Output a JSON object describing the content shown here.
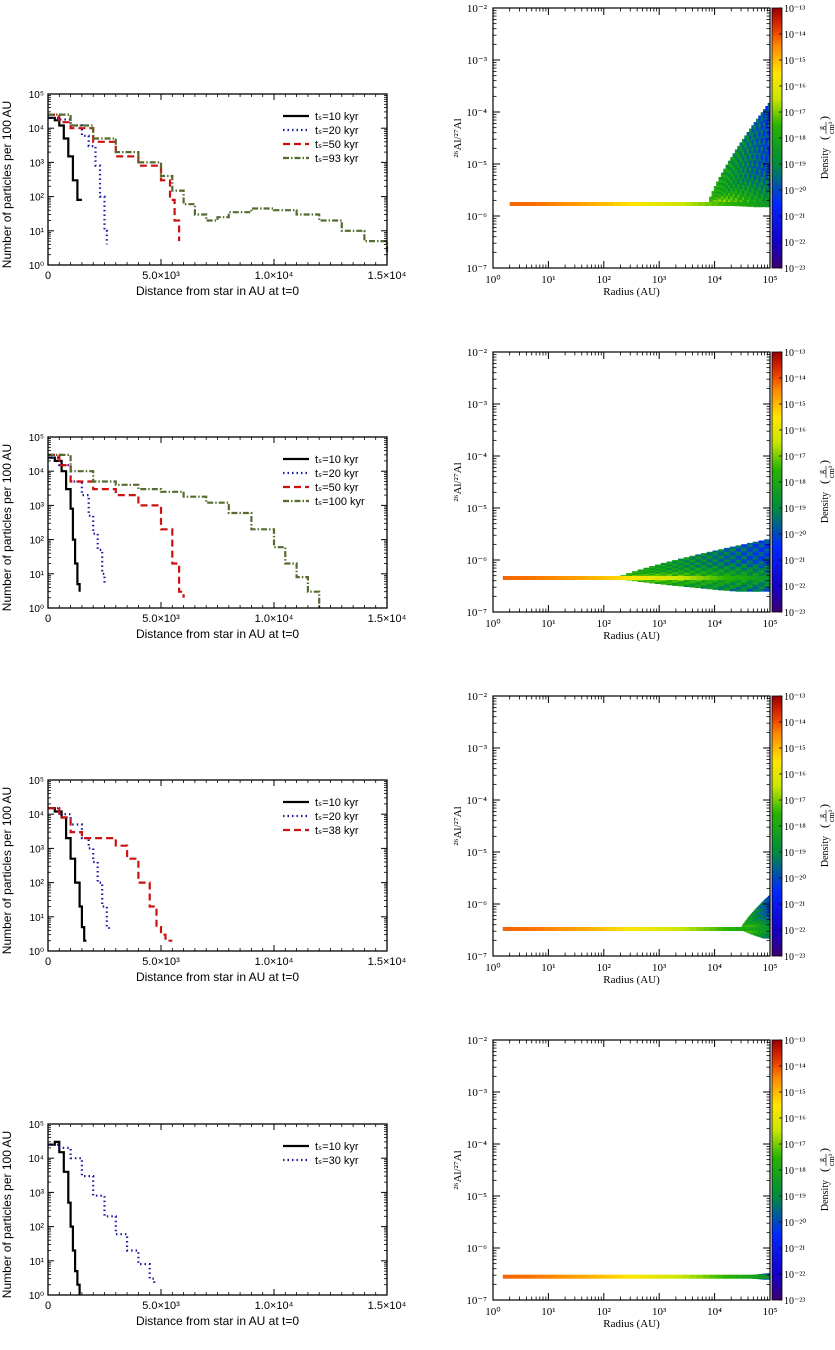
{
  "chart_data": [
    {
      "type": "line",
      "panel": "left-1",
      "xlabel": "Distance from star in AU at t=0",
      "ylabel": "Number of particles per 100 AU",
      "xlim": [
        0,
        15000
      ],
      "ylim": [
        1,
        100000
      ],
      "yscale": "log",
      "xticks": [
        "0",
        "5.0×10³",
        "1.0×10⁴",
        "1.5×10⁴"
      ],
      "yticks": [
        "10⁰",
        "10¹",
        "10²",
        "10³",
        "10⁴",
        "10⁵"
      ],
      "legend_position": "top-right",
      "series": [
        {
          "name": "tₛ=10 kyr",
          "color": "#000000",
          "dash": "solid",
          "x": [
            0,
            300,
            500,
            700,
            900,
            1100,
            1300,
            1500
          ],
          "y": [
            20000,
            17000,
            12000,
            5000,
            1500,
            300,
            80,
            80
          ]
        },
        {
          "name": "tₛ=20 kyr",
          "color": "#1a1a9e",
          "dash": "dot",
          "x": [
            0,
            500,
            1000,
            1500,
            1800,
            2100,
            2300,
            2500,
            2600
          ],
          "y": [
            20000,
            18000,
            12000,
            6000,
            3000,
            800,
            100,
            10,
            4
          ]
        },
        {
          "name": "tₛ=50 kyr",
          "color": "#cc1111",
          "dash": "dash",
          "x": [
            0,
            500,
            1000,
            2000,
            3000,
            4000,
            5000,
            5400,
            5600,
            5800
          ],
          "y": [
            25000,
            15000,
            10000,
            4000,
            1500,
            800,
            300,
            80,
            20,
            5
          ]
        },
        {
          "name": "tₛ=93 kyr",
          "color": "#556b2f",
          "dash": "dashdot",
          "x": [
            0,
            1000,
            2000,
            3000,
            4000,
            5000,
            5500,
            6000,
            6500,
            7000,
            7500,
            8000,
            9000,
            10000,
            11000,
            12000,
            13000,
            14000,
            15000
          ],
          "y": [
            25000,
            12000,
            5000,
            2000,
            1000,
            400,
            150,
            60,
            30,
            20,
            25,
            35,
            45,
            40,
            30,
            20,
            10,
            5,
            2
          ]
        }
      ]
    },
    {
      "type": "heatmap",
      "panel": "right-1",
      "xlabel": "Radius  (AU)",
      "ylabel": "²⁶Al/²⁷Al",
      "xscale": "log",
      "yscale": "log",
      "xlim": [
        1,
        100000
      ],
      "ylim": [
        1e-07,
        0.01
      ],
      "xticks": [
        "10⁰",
        "10¹",
        "10²",
        "10³",
        "10⁴",
        "10⁵"
      ],
      "yticks": [
        "10⁻⁷",
        "10⁻⁶",
        "10⁻⁵",
        "10⁻⁴",
        "10⁻³",
        "10⁻²"
      ],
      "colorbar_label": "Density",
      "colorbar_unit_num": "g",
      "colorbar_unit_den": "cm³",
      "colorbar_range": [
        1e-23,
        1e-13
      ],
      "colorbar_ticks": [
        "10⁻¹³",
        "10⁻¹⁴",
        "10⁻¹⁵",
        "10⁻¹⁶",
        "10⁻¹⁷",
        "10⁻¹⁸",
        "10⁻¹⁹",
        "10⁻²⁰",
        "10⁻²¹",
        "10⁻²²",
        "10⁻²³"
      ],
      "band": {
        "ratio": 1.7e-06,
        "r_start": 2
      },
      "cloud": {
        "r_start": 8000,
        "r_end": 100000,
        "ratio_min": 1.5e-06,
        "ratio_max": 0.00015
      }
    },
    {
      "type": "line",
      "panel": "left-2",
      "xlabel": "Distance from star in AU at t=0",
      "ylabel": "Number of particles per 100 AU",
      "xlim": [
        0,
        15000
      ],
      "ylim": [
        1,
        100000
      ],
      "yscale": "log",
      "xticks": [
        "0",
        "5.0×10³",
        "1.0×10⁴",
        "1.5×10⁴"
      ],
      "yticks": [
        "10⁰",
        "10¹",
        "10²",
        "10³",
        "10⁴",
        "10⁵"
      ],
      "legend_position": "top-right",
      "series": [
        {
          "name": "tₛ=10 kyr",
          "color": "#000000",
          "dash": "solid",
          "x": [
            0,
            300,
            600,
            800,
            1000,
            1100,
            1200,
            1300,
            1400
          ],
          "y": [
            25000,
            20000,
            10000,
            3000,
            800,
            100,
            20,
            5,
            3
          ]
        },
        {
          "name": "tₛ=20 kyr",
          "color": "#1a1a9e",
          "dash": "dot",
          "x": [
            0,
            500,
            1000,
            1500,
            1800,
            2000,
            2200,
            2400,
            2500
          ],
          "y": [
            25000,
            15000,
            5000,
            2000,
            500,
            150,
            50,
            10,
            5
          ]
        },
        {
          "name": "tₛ=50 kyr",
          "color": "#cc1111",
          "dash": "dash",
          "x": [
            0,
            500,
            1000,
            2000,
            3000,
            4000,
            5000,
            5500,
            5800,
            6000
          ],
          "y": [
            30000,
            15000,
            5000,
            3000,
            2000,
            1000,
            200,
            20,
            3,
            2
          ]
        },
        {
          "name": "tₛ=100 kyr",
          "color": "#556b2f",
          "dash": "dashdot",
          "x": [
            0,
            1000,
            2000,
            3000,
            4000,
            5000,
            6000,
            7000,
            8000,
            9000,
            10000,
            10500,
            11000,
            11500,
            12000
          ],
          "y": [
            30000,
            10000,
            5000,
            4000,
            3000,
            2500,
            1800,
            1200,
            600,
            200,
            60,
            20,
            8,
            3,
            1
          ]
        }
      ]
    },
    {
      "type": "heatmap",
      "panel": "right-2",
      "xlabel": "Radius  (AU)",
      "ylabel": "²⁶Al/²⁷Al",
      "xscale": "log",
      "yscale": "log",
      "xlim": [
        1,
        100000
      ],
      "ylim": [
        1e-07,
        0.01
      ],
      "xticks": [
        "10⁰",
        "10¹",
        "10²",
        "10³",
        "10⁴",
        "10⁵"
      ],
      "yticks": [
        "10⁻⁷",
        "10⁻⁶",
        "10⁻⁵",
        "10⁻⁴",
        "10⁻³",
        "10⁻²"
      ],
      "colorbar_label": "Density",
      "colorbar_unit_num": "g",
      "colorbar_unit_den": "cm³",
      "colorbar_range": [
        1e-23,
        1e-13
      ],
      "colorbar_ticks": [
        "10⁻¹³",
        "10⁻¹⁴",
        "10⁻¹⁵",
        "10⁻¹⁶",
        "10⁻¹⁷",
        "10⁻¹⁸",
        "10⁻¹⁹",
        "10⁻²⁰",
        "10⁻²¹",
        "10⁻²²",
        "10⁻²³"
      ],
      "band": {
        "ratio": 4.5e-07,
        "r_start": 1.5
      },
      "cloud": {
        "r_start": 200,
        "r_end": 100000,
        "ratio_min": 2.5e-07,
        "ratio_max": 2.5e-06
      }
    },
    {
      "type": "line",
      "panel": "left-3",
      "xlabel": "Distance from star in AU at t=0",
      "ylabel": "Number of particles per 100 AU",
      "xlim": [
        0,
        15000
      ],
      "ylim": [
        1,
        100000
      ],
      "yscale": "log",
      "xticks": [
        "0",
        "5.0×10³",
        "1.0×10⁴",
        "1.5×10⁴"
      ],
      "yticks": [
        "10⁰",
        "10¹",
        "10²",
        "10³",
        "10⁴",
        "10⁵"
      ],
      "legend_position": "top-right",
      "series": [
        {
          "name": "tₛ=10 kyr",
          "color": "#000000",
          "dash": "solid",
          "x": [
            0,
            300,
            600,
            800,
            1000,
            1200,
            1400,
            1500,
            1600,
            1700
          ],
          "y": [
            15000,
            12000,
            8000,
            2000,
            500,
            100,
            20,
            5,
            2,
            2
          ]
        },
        {
          "name": "tₛ=20 kyr",
          "color": "#1a1a9e",
          "dash": "dot",
          "x": [
            0,
            500,
            1000,
            1500,
            1800,
            2000,
            2200,
            2400,
            2600,
            2700
          ],
          "y": [
            15000,
            10000,
            5000,
            2000,
            1000,
            400,
            100,
            20,
            5,
            4
          ]
        },
        {
          "name": "tₛ=38 kyr",
          "color": "#cc1111",
          "dash": "dash",
          "x": [
            0,
            500,
            1000,
            1500,
            2000,
            3000,
            3500,
            4000,
            4500,
            4800,
            5000,
            5200,
            5500
          ],
          "y": [
            15000,
            8000,
            3000,
            2000,
            2000,
            1200,
            500,
            100,
            20,
            5,
            3,
            2,
            2
          ]
        }
      ]
    },
    {
      "type": "heatmap",
      "panel": "right-3",
      "xlabel": "Radius  (AU)",
      "ylabel": "²⁶Al/²⁷Al",
      "xscale": "log",
      "yscale": "log",
      "xlim": [
        1,
        100000
      ],
      "ylim": [
        1e-07,
        0.01
      ],
      "xticks": [
        "10⁰",
        "10¹",
        "10²",
        "10³",
        "10⁴",
        "10⁵"
      ],
      "yticks": [
        "10⁻⁷",
        "10⁻⁶",
        "10⁻⁵",
        "10⁻⁴",
        "10⁻³",
        "10⁻²"
      ],
      "colorbar_label": "Density",
      "colorbar_unit_num": "g",
      "colorbar_unit_den": "cm³",
      "colorbar_range": [
        1e-23,
        1e-13
      ],
      "colorbar_ticks": [
        "10⁻¹³",
        "10⁻¹⁴",
        "10⁻¹⁵",
        "10⁻¹⁶",
        "10⁻¹⁷",
        "10⁻¹⁸",
        "10⁻¹⁹",
        "10⁻²⁰",
        "10⁻²¹",
        "10⁻²²",
        "10⁻²³"
      ],
      "band": {
        "ratio": 3.3e-07,
        "r_start": 1.5
      },
      "cloud": {
        "r_start": 30000,
        "r_end": 100000,
        "ratio_min": 2.2e-07,
        "ratio_max": 1.5e-06
      }
    },
    {
      "type": "line",
      "panel": "left-4",
      "xlabel": "Distance from star in AU at t=0",
      "ylabel": "Number of particles per 100 AU",
      "xlim": [
        0,
        15000
      ],
      "ylim": [
        1,
        100000
      ],
      "yscale": "log",
      "xticks": [
        "0",
        "5.0×10³",
        "1.0×10⁴",
        "1.5×10⁴"
      ],
      "yticks": [
        "10⁰",
        "10¹",
        "10²",
        "10³",
        "10⁴",
        "10⁵"
      ],
      "legend_position": "top-right",
      "series": [
        {
          "name": "tₛ=10 kyr",
          "color": "#000000",
          "dash": "solid",
          "x": [
            0,
            300,
            500,
            700,
            900,
            1000,
            1100,
            1200,
            1300,
            1400
          ],
          "y": [
            25000,
            30000,
            15000,
            4000,
            500,
            100,
            20,
            5,
            2,
            1
          ]
        },
        {
          "name": "tₛ=30 kyr",
          "color": "#1a1a9e",
          "dash": "dot",
          "x": [
            0,
            500,
            1000,
            1500,
            2000,
            2500,
            3000,
            3500,
            4000,
            4500,
            4700
          ],
          "y": [
            25000,
            20000,
            10000,
            3000,
            800,
            200,
            60,
            20,
            8,
            3,
            2
          ]
        }
      ]
    },
    {
      "type": "heatmap",
      "panel": "right-4",
      "xlabel": "Radius  (AU)",
      "ylabel": "²⁶Al/²⁷Al",
      "xscale": "log",
      "yscale": "log",
      "xlim": [
        1,
        100000
      ],
      "ylim": [
        1e-07,
        0.01
      ],
      "xticks": [
        "10⁰",
        "10¹",
        "10²",
        "10³",
        "10⁴",
        "10⁵"
      ],
      "yticks": [
        "10⁻⁷",
        "10⁻⁶",
        "10⁻⁵",
        "10⁻⁴",
        "10⁻³",
        "10⁻²"
      ],
      "colorbar_label": "Density",
      "colorbar_unit_num": "g",
      "colorbar_unit_den": "cm³",
      "colorbar_range": [
        1e-23,
        1e-13
      ],
      "colorbar_ticks": [
        "10⁻¹³",
        "10⁻¹⁴",
        "10⁻¹⁵",
        "10⁻¹⁶",
        "10⁻¹⁷",
        "10⁻¹⁸",
        "10⁻¹⁹",
        "10⁻²⁰",
        "10⁻²¹",
        "10⁻²²",
        "10⁻²³"
      ],
      "band": {
        "ratio": 2.8e-07,
        "r_start": 1.5
      },
      "cloud": {
        "r_start": 30000,
        "r_end": 100000,
        "ratio_min": 2.5e-07,
        "ratio_max": 3.3e-07
      }
    }
  ]
}
